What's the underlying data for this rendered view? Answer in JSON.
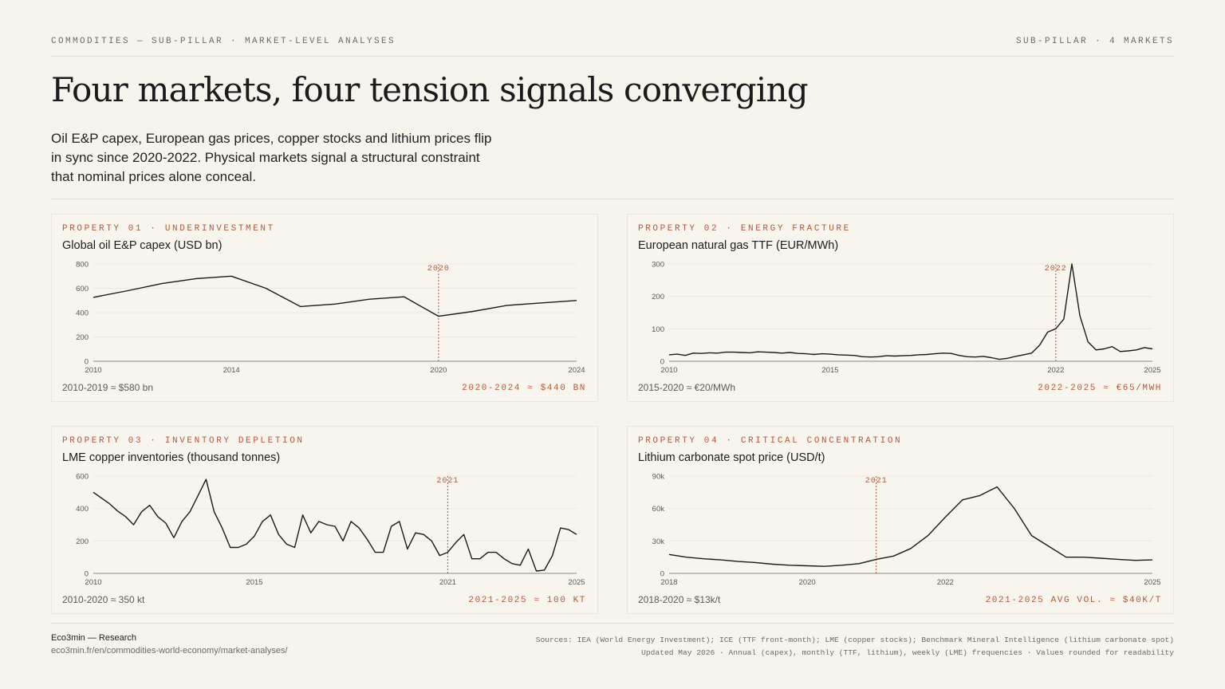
{
  "header": {
    "breadcrumb": "COMMODITIES — SUB-PILLAR · MARKET-LEVEL ANALYSES",
    "right_label": "SUB-PILLAR · 4 MARKETS"
  },
  "title": "Four markets, four tension signals converging",
  "lead": "Oil E&P capex, European gas prices, copper stocks and lithium prices flip in sync since 2020-2022. Physical markets signal a structural constraint that nominal prices alone conceal.",
  "colors": {
    "accent": "#b5573a",
    "line": "#1a1a1a",
    "background": "#f7f4ee",
    "grid": "#ece8e1"
  },
  "panels": [
    {
      "tag": "PROPERTY 01 · UNDERINVESTMENT",
      "title": "Global oil E&P capex (USD bn)",
      "left_note": "2010-2019 ≈ $580 bn",
      "right_note": "2020-2024 ≈ $440 BN"
    },
    {
      "tag": "PROPERTY 02 · ENERGY FRACTURE",
      "title": "European natural gas TTF (EUR/MWh)",
      "left_note": "2015-2020 ≈ €20/MWh",
      "right_note": "2022-2025 ≈ €65/MWH"
    },
    {
      "tag": "PROPERTY 03 · INVENTORY DEPLETION",
      "title": "LME copper inventories (thousand tonnes)",
      "left_note": "2010-2020 ≈ 350 kt",
      "right_note": "2021-2025 ≈ 100 KT"
    },
    {
      "tag": "PROPERTY 04 · CRITICAL CONCENTRATION",
      "title": "Lithium carbonate spot price (USD/t)",
      "left_note": "2018-2020 ≈ $13k/t",
      "right_note": "2021-2025 AVG VOL. ≈ $40K/T"
    }
  ],
  "chart_data": [
    {
      "type": "line",
      "title": "Global oil E&P capex (USD bn)",
      "xlim": [
        2010,
        2024
      ],
      "ylim": [
        0,
        800
      ],
      "x_ticks": [
        "2010",
        "2014",
        "2020",
        "2024"
      ],
      "y_ticks": [
        {
          "v": 0,
          "label": "0"
        },
        {
          "v": 200,
          "label": "200"
        },
        {
          "v": 400,
          "label": "400"
        },
        {
          "v": 600,
          "label": "600"
        },
        {
          "v": 800,
          "label": "800"
        }
      ],
      "marker": {
        "x": 2020,
        "label": "2020"
      },
      "x": [
        2010,
        2011,
        2012,
        2013,
        2014,
        2015,
        2016,
        2017,
        2018,
        2019,
        2020,
        2021,
        2022,
        2023,
        2024
      ],
      "values": [
        525,
        580,
        640,
        680,
        700,
        600,
        450,
        470,
        510,
        530,
        370,
        410,
        460,
        480,
        500
      ]
    },
    {
      "type": "line",
      "title": "European natural gas TTF (EUR/MWh)",
      "xlim": [
        2010,
        2025
      ],
      "ylim": [
        0,
        300
      ],
      "x_ticks": [
        "2010",
        "2015",
        "2022",
        "2025"
      ],
      "y_ticks": [
        {
          "v": 0,
          "label": "0"
        },
        {
          "v": 100,
          "label": "100"
        },
        {
          "v": 200,
          "label": "200"
        },
        {
          "v": 300,
          "label": "300"
        }
      ],
      "marker": {
        "x": 2022,
        "label": "2022"
      },
      "x": [
        2010.0,
        2010.25,
        2010.5,
        2010.75,
        2011.0,
        2011.25,
        2011.5,
        2011.75,
        2012.0,
        2012.25,
        2012.5,
        2012.75,
        2013.0,
        2013.25,
        2013.5,
        2013.75,
        2014.0,
        2014.25,
        2014.5,
        2014.75,
        2015.0,
        2015.25,
        2015.5,
        2015.75,
        2016.0,
        2016.25,
        2016.5,
        2016.75,
        2017.0,
        2017.25,
        2017.5,
        2017.75,
        2018.0,
        2018.25,
        2018.5,
        2018.75,
        2019.0,
        2019.25,
        2019.5,
        2019.75,
        2020.0,
        2020.25,
        2020.5,
        2020.75,
        2021.0,
        2021.25,
        2021.5,
        2021.75,
        2022.0,
        2022.25,
        2022.5,
        2022.75,
        2023.0,
        2023.25,
        2023.5,
        2023.75,
        2024.0,
        2024.25,
        2024.5,
        2024.75,
        2025.0
      ],
      "values": [
        20,
        22,
        18,
        25,
        24,
        26,
        25,
        28,
        28,
        27,
        26,
        29,
        28,
        27,
        25,
        27,
        24,
        23,
        21,
        23,
        22,
        20,
        19,
        18,
        14,
        13,
        14,
        17,
        16,
        17,
        18,
        20,
        21,
        23,
        25,
        24,
        18,
        14,
        13,
        15,
        11,
        6,
        9,
        15,
        20,
        25,
        50,
        90,
        100,
        130,
        300,
        140,
        60,
        35,
        38,
        45,
        30,
        32,
        35,
        42,
        38
      ]
    },
    {
      "type": "line",
      "title": "LME copper inventories (thousand tonnes)",
      "xlim": [
        2010,
        2025
      ],
      "ylim": [
        0,
        600
      ],
      "x_ticks": [
        "2010",
        "2015",
        "2021",
        "2025"
      ],
      "y_ticks": [
        {
          "v": 0,
          "label": "0"
        },
        {
          "v": 200,
          "label": "200"
        },
        {
          "v": 400,
          "label": "400"
        },
        {
          "v": 600,
          "label": "600"
        }
      ],
      "marker": {
        "x": 2021,
        "label": "2021"
      },
      "x": [
        2010.0,
        2010.5,
        2010.75,
        2011.0,
        2011.25,
        2011.5,
        2011.75,
        2012.0,
        2012.25,
        2012.5,
        2012.75,
        2013.0,
        2013.25,
        2013.5,
        2013.75,
        2014.0,
        2014.25,
        2014.5,
        2014.75,
        2015.0,
        2015.25,
        2015.5,
        2015.75,
        2016.0,
        2016.25,
        2016.5,
        2016.75,
        2017.0,
        2017.25,
        2017.5,
        2017.75,
        2018.0,
        2018.25,
        2018.5,
        2018.75,
        2019.0,
        2019.25,
        2019.5,
        2019.75,
        2020.0,
        2020.25,
        2020.5,
        2020.75,
        2021.0,
        2021.25,
        2021.5,
        2021.75,
        2022.0,
        2022.25,
        2022.5,
        2022.75,
        2023.0,
        2023.25,
        2023.5,
        2023.75,
        2024.0,
        2024.25,
        2024.5,
        2024.75,
        2025.0
      ],
      "values": [
        500,
        430,
        385,
        350,
        300,
        380,
        420,
        350,
        310,
        220,
        320,
        380,
        480,
        580,
        380,
        280,
        160,
        160,
        180,
        230,
        320,
        360,
        240,
        180,
        160,
        360,
        250,
        320,
        300,
        290,
        200,
        320,
        280,
        210,
        130,
        130,
        290,
        320,
        150,
        250,
        240,
        200,
        110,
        130,
        190,
        240,
        90,
        90,
        130,
        130,
        90,
        60,
        50,
        150,
        15,
        20,
        110,
        280,
        270,
        240
      ]
    },
    {
      "type": "line",
      "title": "Lithium carbonate spot price (USD/t)",
      "xlim": [
        2018,
        2025
      ],
      "ylim": [
        0,
        90000
      ],
      "x_ticks": [
        "2018",
        "2020",
        "2022",
        "2025"
      ],
      "y_ticks": [
        {
          "v": 0,
          "label": "0"
        },
        {
          "v": 30000,
          "label": "30k"
        },
        {
          "v": 60000,
          "label": "60k"
        },
        {
          "v": 90000,
          "label": "90k"
        }
      ],
      "marker": {
        "x": 2021,
        "label": "2021"
      },
      "x": [
        2018.0,
        2018.25,
        2018.5,
        2018.75,
        2019.0,
        2019.25,
        2019.5,
        2019.75,
        2020.0,
        2020.25,
        2020.5,
        2020.75,
        2021.0,
        2021.25,
        2021.5,
        2021.75,
        2022.0,
        2022.25,
        2022.5,
        2022.75,
        2023.0,
        2023.25,
        2023.5,
        2023.75,
        2024.0,
        2024.25,
        2024.5,
        2024.75,
        2025.0
      ],
      "values": [
        17500,
        15000,
        13500,
        12500,
        11000,
        10000,
        8500,
        7500,
        7000,
        6500,
        7500,
        9000,
        13000,
        16000,
        23000,
        35000,
        52000,
        68000,
        72000,
        80000,
        60000,
        35000,
        25000,
        15000,
        15000,
        14000,
        13000,
        12000,
        12500
      ]
    }
  ],
  "footer": {
    "brand": "Eco3min — Research",
    "url": "eco3min.fr/en/commodities-world-economy/market-analyses/",
    "sources": "Sources: IEA (World Energy Investment); ICE (TTF front-month); LME (copper stocks); Benchmark Mineral Intelligence (lithium carbonate spot)",
    "updated": "Updated May 2026 · Annual (capex), monthly (TTF, lithium), weekly (LME) frequencies · Values rounded for readability"
  }
}
